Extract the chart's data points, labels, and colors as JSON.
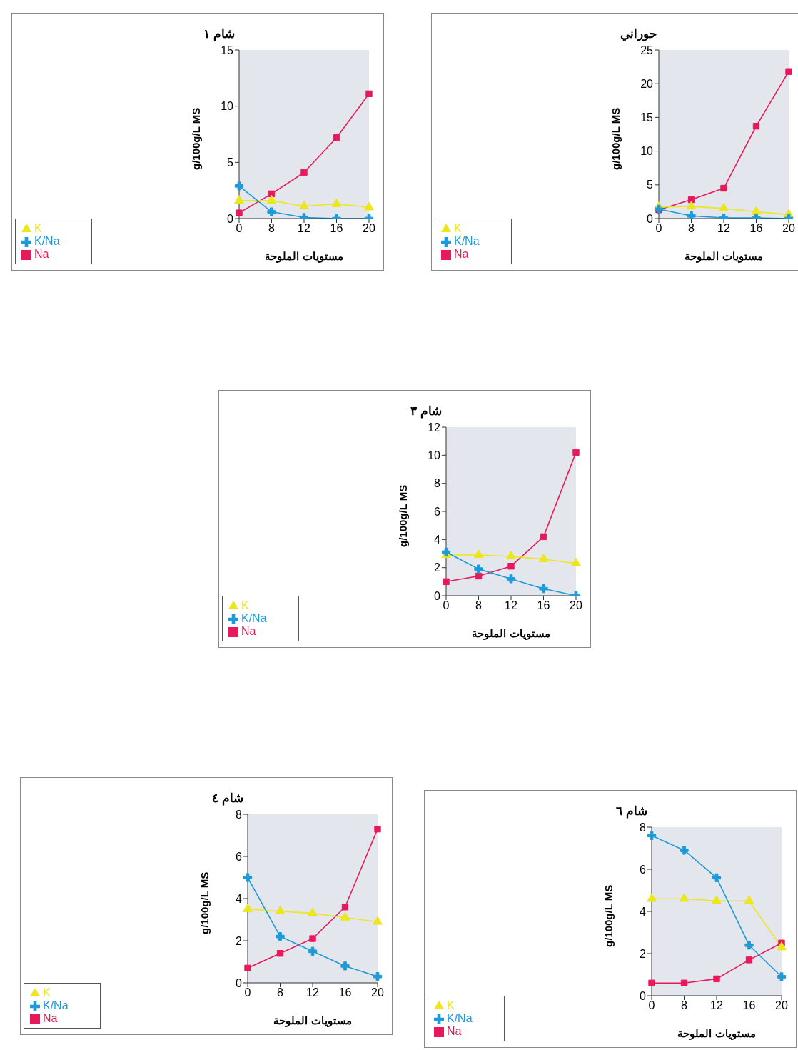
{
  "chart_data": [
    {
      "type": "line",
      "title": "شام ١",
      "xlabel": "مستويات الملوحة",
      "ylabel": "g/100g/L MS",
      "categories": [
        "0",
        "8",
        "12",
        "16",
        "20"
      ],
      "ylim": [
        0,
        15
      ],
      "yticks": [
        0,
        5,
        10,
        15
      ],
      "grid": false,
      "legend": "bottom left",
      "series": [
        {
          "name": "Na",
          "color": "#e8195a",
          "marker": "square",
          "values": [
            0.5,
            2.2,
            4.1,
            7.2,
            11.1
          ]
        },
        {
          "name": "K",
          "color": "#ece61a",
          "marker": "triangle",
          "values": [
            1.6,
            1.6,
            1.1,
            1.3,
            1.0
          ]
        },
        {
          "name": "K/Na",
          "color": "#1e9ad8",
          "marker": "cross",
          "values": [
            2.9,
            0.6,
            0.1,
            0.0,
            0.0
          ]
        }
      ]
    },
    {
      "type": "line",
      "title": "حوراني",
      "xlabel": "مستويات الملوحة",
      "ylabel": "g/100g/L MS",
      "categories": [
        "0",
        "8",
        "12",
        "16",
        "20"
      ],
      "ylim": [
        0,
        25
      ],
      "yticks": [
        0,
        5,
        10,
        15,
        20,
        25
      ],
      "grid": false,
      "legend": "bottom left",
      "series": [
        {
          "name": "Na",
          "color": "#e8195a",
          "marker": "square",
          "values": [
            1.3,
            2.8,
            4.5,
            13.7,
            21.8
          ]
        },
        {
          "name": "K",
          "color": "#ece61a",
          "marker": "triangle",
          "values": [
            1.7,
            1.8,
            1.5,
            1.0,
            0.6
          ]
        },
        {
          "name": "K/Na",
          "color": "#1e9ad8",
          "marker": "cross",
          "values": [
            1.4,
            0.4,
            0.1,
            0.1,
            0.0
          ]
        }
      ]
    },
    {
      "type": "line",
      "title": "شام ٣",
      "xlabel": "مستويات الملوحة",
      "ylabel": "g/100g/L MS",
      "categories": [
        "0",
        "8",
        "12",
        "16",
        "20"
      ],
      "ylim": [
        0,
        12
      ],
      "yticks": [
        0,
        2,
        4,
        6,
        8,
        10,
        12
      ],
      "grid": false,
      "legend": "bottom left",
      "series": [
        {
          "name": "Na",
          "color": "#e8195a",
          "marker": "square",
          "values": [
            1.0,
            1.4,
            2.1,
            4.2,
            10.2
          ]
        },
        {
          "name": "K",
          "color": "#ece61a",
          "marker": "triangle",
          "values": [
            2.9,
            2.9,
            2.8,
            2.6,
            2.3
          ]
        },
        {
          "name": "K/Na",
          "color": "#1e9ad8",
          "marker": "cross",
          "values": [
            3.1,
            1.9,
            1.2,
            0.5,
            0.0
          ]
        }
      ]
    },
    {
      "type": "line",
      "title": "شام ٤",
      "xlabel": "مستويات الملوحة",
      "ylabel": "g/100g/L MS",
      "categories": [
        "0",
        "8",
        "12",
        "16",
        "20"
      ],
      "ylim": [
        0,
        8
      ],
      "yticks": [
        0,
        2,
        4,
        6,
        8
      ],
      "grid": false,
      "legend": "bottom left",
      "series": [
        {
          "name": "Na",
          "color": "#e8195a",
          "marker": "square",
          "values": [
            0.7,
            1.4,
            2.1,
            3.6,
            7.3
          ]
        },
        {
          "name": "K",
          "color": "#ece61a",
          "marker": "triangle",
          "values": [
            3.5,
            3.4,
            3.3,
            3.1,
            2.9
          ]
        },
        {
          "name": "K/Na",
          "color": "#1e9ad8",
          "marker": "cross",
          "values": [
            5.0,
            2.2,
            1.5,
            0.8,
            0.3
          ]
        }
      ]
    },
    {
      "type": "line",
      "title": "شام ٦",
      "xlabel": "مستويات الملوحة",
      "ylabel": "g/100g/L MS",
      "categories": [
        "0",
        "8",
        "12",
        "16",
        "20"
      ],
      "ylim": [
        0,
        8
      ],
      "yticks": [
        0,
        2,
        4,
        6,
        8
      ],
      "grid": false,
      "legend": "bottom left",
      "series": [
        {
          "name": "Na",
          "color": "#e8195a",
          "marker": "square",
          "values": [
            0.6,
            0.6,
            0.8,
            1.7,
            2.5
          ]
        },
        {
          "name": "K",
          "color": "#ece61a",
          "marker": "triangle",
          "values": [
            4.6,
            4.6,
            4.5,
            4.5,
            2.3
          ]
        },
        {
          "name": "K/Na",
          "color": "#1e9ad8",
          "marker": "cross",
          "values": [
            7.6,
            6.9,
            5.6,
            2.4,
            0.9
          ]
        }
      ]
    }
  ]
}
